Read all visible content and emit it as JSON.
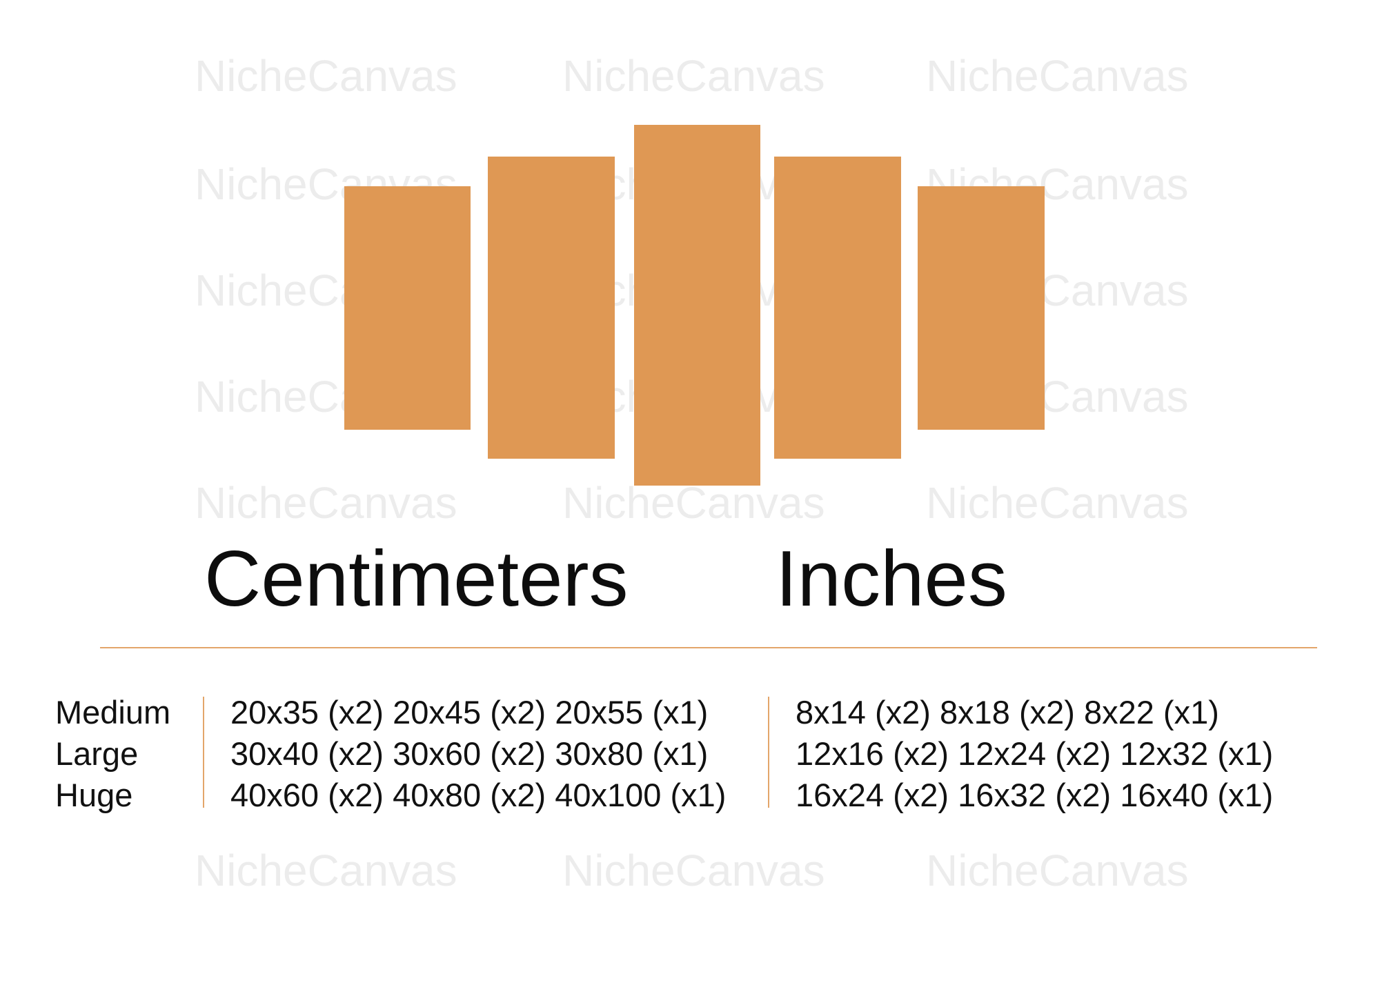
{
  "watermark": "NicheCanvas",
  "panel_color": "#df9854",
  "accent_color": "#e3a56a",
  "headings": {
    "cm": "Centimeters",
    "in": "Inches"
  },
  "sizes": [
    {
      "label": "Medium",
      "cm": "20x35 (x2) 20x45 (x2) 20x55 (x1)",
      "in": "8x14 (x2) 8x18 (x2) 8x22 (x1)"
    },
    {
      "label": "Large",
      "cm": "30x40 (x2) 30x60 (x2) 30x80 (x1)",
      "in": "12x16 (x2) 12x24 (x2) 12x32 (x1)"
    },
    {
      "label": "Huge",
      "cm": "40x60 (x2) 40x80 (x2) 40x100 (x1)",
      "in": "16x24 (x2) 16x32 (x2) 16x40 (x1)"
    }
  ]
}
